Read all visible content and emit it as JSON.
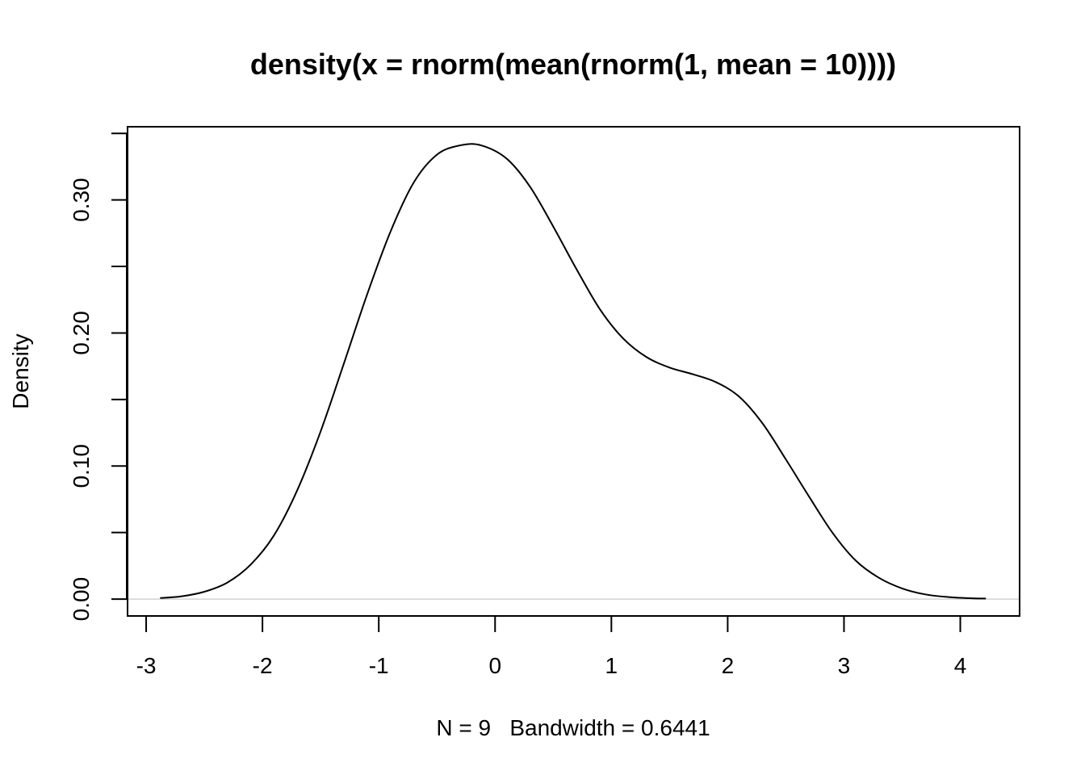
{
  "chart_data": {
    "type": "line",
    "title": "density(x = rnorm(mean(rnorm(1, mean = 10))))",
    "xlabel": "N = 9   Bandwidth = 0.6441",
    "ylabel": "Density",
    "xlim": [
      -3.16,
      4.51
    ],
    "ylim": [
      -0.0127,
      0.355
    ],
    "x_ticks": [
      -3,
      -2,
      -1,
      0,
      1,
      2,
      3,
      4
    ],
    "x_tick_labels": [
      "-3",
      "-2",
      "-1",
      "0",
      "1",
      "2",
      "3",
      "4"
    ],
    "y_ticks": [
      0,
      0.05,
      0.1,
      0.15,
      0.2,
      0.25,
      0.3,
      0.35
    ],
    "y_tick_labels": [
      "0.00",
      "0.10",
      "0.20",
      "0.30"
    ],
    "y_tick_label_values": [
      0,
      0.1,
      0.2,
      0.3
    ],
    "zero_line": true,
    "line_color": "#000000",
    "zero_line_color": "#d3d3d3",
    "grid": false,
    "series": [
      {
        "x": [
          -2.88,
          -2.7,
          -2.5,
          -2.3,
          -2.1,
          -1.9,
          -1.7,
          -1.5,
          -1.3,
          -1.1,
          -0.9,
          -0.7,
          -0.5,
          -0.3,
          -0.12,
          0.1,
          0.3,
          0.5,
          0.7,
          0.9,
          1.1,
          1.3,
          1.5,
          1.7,
          1.9,
          2.1,
          2.3,
          2.5,
          2.7,
          2.9,
          3.1,
          3.3,
          3.5,
          3.7,
          3.9,
          4.1,
          4.22
        ],
        "y": [
          0.0008,
          0.002,
          0.0055,
          0.0125,
          0.026,
          0.048,
          0.082,
          0.126,
          0.177,
          0.229,
          0.276,
          0.313,
          0.334,
          0.341,
          0.341,
          0.331,
          0.31,
          0.28,
          0.248,
          0.218,
          0.196,
          0.182,
          0.174,
          0.169,
          0.163,
          0.152,
          0.132,
          0.105,
          0.077,
          0.05,
          0.029,
          0.016,
          0.008,
          0.0035,
          0.0015,
          0.0006,
          0.0004
        ]
      }
    ]
  }
}
